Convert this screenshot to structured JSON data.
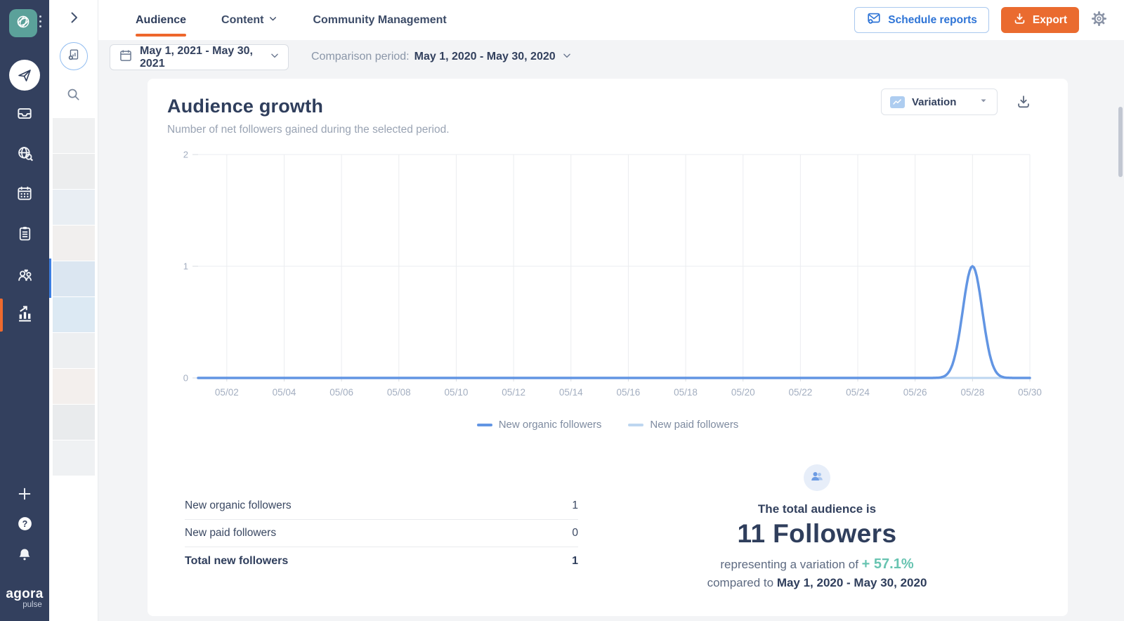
{
  "app": {
    "brand_top": "agora",
    "brand_bottom": "pulse",
    "colors": {
      "sidebar_bg": "#33405e",
      "avatar_teal": "#5ba19a",
      "accent_orange": "#ea6b2f",
      "accent_blue": "#2e74d6",
      "chart_blue": "#6295e3",
      "chart_light_blue": "#bdd6f0",
      "teal_green": "#68c4b1",
      "filter_bar_bg": "#f3f4f6"
    }
  },
  "icons": {
    "kebab-menu": "vertical-dots",
    "paper-plane": "send",
    "inbox-tray": "inbox",
    "globe-search": "listening",
    "calendar": "calendar",
    "clipboard": "notes",
    "people-heart": "fans",
    "bar-chart-arrow": "reports",
    "plus": "+",
    "question": "?",
    "bell": "notifications",
    "chevron-right": "expand",
    "add-report": "new-report",
    "search": "magnifier",
    "chevron-down": "caret",
    "envelope-plus": "schedule",
    "download": "export",
    "gear": "settings",
    "variation-chart": "line-chart",
    "people": "audience"
  },
  "panel": {
    "thumbnails": [
      {
        "color": "#f0f1f2",
        "selected": false
      },
      {
        "color": "#ecedee",
        "selected": false
      },
      {
        "color": "#e9eef3",
        "selected": false
      },
      {
        "color": "#f1efee",
        "selected": false
      },
      {
        "color": "#dbe6f1",
        "selected": true
      },
      {
        "color": "#dce9f3",
        "selected": false
      },
      {
        "color": "#edeff1",
        "selected": false
      },
      {
        "color": "#f3efed",
        "selected": false
      },
      {
        "color": "#e9ebed",
        "selected": false
      },
      {
        "color": "#eff1f3",
        "selected": false
      }
    ]
  },
  "header": {
    "tabs": [
      {
        "label": "Audience",
        "active": true
      },
      {
        "label": "Content",
        "active": false,
        "has_dropdown": true
      },
      {
        "label": "Community Management",
        "active": false
      }
    ],
    "schedule_reports_label": "Schedule reports",
    "export_label": "Export"
  },
  "filters": {
    "date_range": "May 1, 2021 - May 30, 2021",
    "comparison_label": "Comparison period:",
    "comparison_value": "May 1, 2020 - May 30, 2020"
  },
  "card": {
    "title": "Audience growth",
    "subtitle": "Number of net followers gained during the selected period.",
    "variation_label": "Variation"
  },
  "chart_data": {
    "type": "line",
    "title": "Audience growth",
    "xlabel": "",
    "ylabel": "",
    "ylim": [
      0,
      2
    ],
    "y_ticks": [
      0,
      1,
      2
    ],
    "grid": true,
    "legend_position": "bottom",
    "dates": [
      "05/01",
      "05/02",
      "05/03",
      "05/04",
      "05/05",
      "05/06",
      "05/07",
      "05/08",
      "05/09",
      "05/10",
      "05/11",
      "05/12",
      "05/13",
      "05/14",
      "05/15",
      "05/16",
      "05/17",
      "05/18",
      "05/19",
      "05/20",
      "05/21",
      "05/22",
      "05/23",
      "05/24",
      "05/25",
      "05/26",
      "05/27",
      "05/28",
      "05/29",
      "05/30"
    ],
    "x_ticks": [
      "05/02",
      "05/04",
      "05/06",
      "05/08",
      "05/10",
      "05/12",
      "05/14",
      "05/16",
      "05/18",
      "05/20",
      "05/22",
      "05/24",
      "05/26",
      "05/28",
      "05/30"
    ],
    "x_tick_days": [
      2,
      4,
      6,
      8,
      10,
      12,
      14,
      16,
      18,
      20,
      22,
      24,
      26,
      28,
      30
    ],
    "series": [
      {
        "name": "New organic followers",
        "color": "#6295e3",
        "values": [
          0,
          0,
          0,
          0,
          0,
          0,
          0,
          0,
          0,
          0,
          0,
          0,
          0,
          0,
          0,
          0,
          0,
          0,
          0,
          0,
          0,
          0,
          0,
          0,
          0,
          0,
          0,
          1,
          0,
          0
        ]
      },
      {
        "name": "New paid followers",
        "color": "#bdd6f0",
        "values": [
          0,
          0,
          0,
          0,
          0,
          0,
          0,
          0,
          0,
          0,
          0,
          0,
          0,
          0,
          0,
          0,
          0,
          0,
          0,
          0,
          0,
          0,
          0,
          0,
          0,
          0,
          0,
          0,
          0,
          0
        ]
      }
    ]
  },
  "summary_table": {
    "rows": [
      {
        "label": "New organic followers",
        "value": "1",
        "bold": false
      },
      {
        "label": "New paid followers",
        "value": "0",
        "bold": false
      },
      {
        "label": "Total new followers",
        "value": "1",
        "bold": true
      }
    ]
  },
  "total_audience": {
    "heading": "The total audience is",
    "value": "11 Followers",
    "variation_prefix": "representing a variation of",
    "variation_value": "+ 57.1%",
    "compare_prefix": "compared to",
    "compare_value": "May 1, 2020 - May 30, 2020"
  }
}
